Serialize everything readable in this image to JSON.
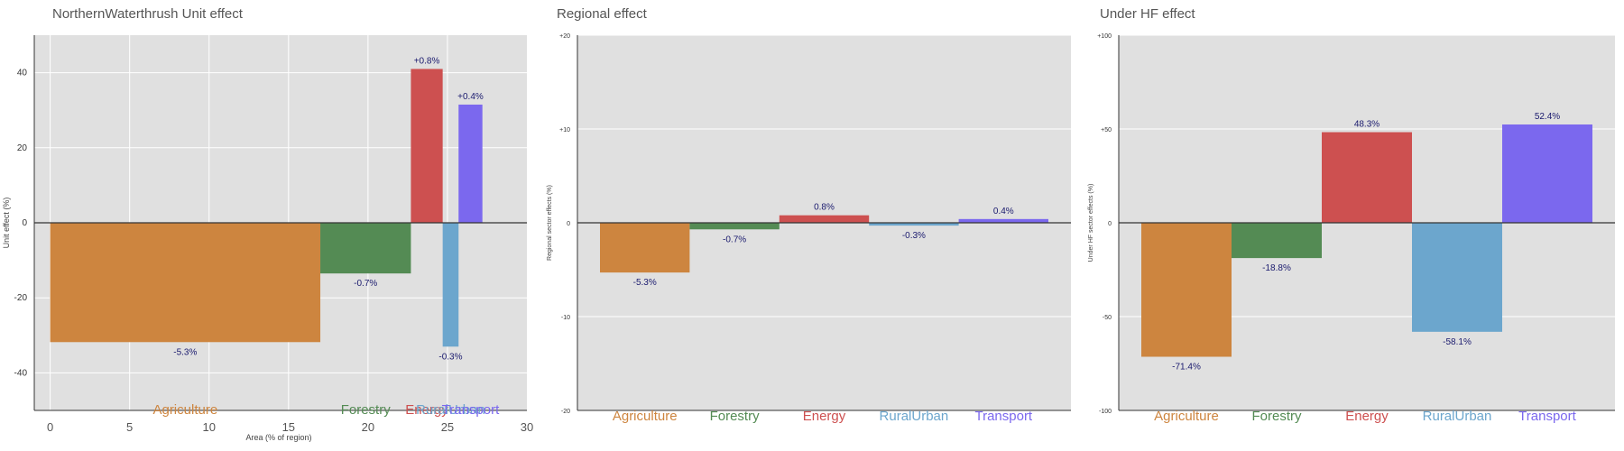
{
  "colors": {
    "panel_bg": "#e0e0e0",
    "grid": "#ffffff",
    "axis": "#333333",
    "label_text": "#1a1a6e",
    "Agriculture": "#cd853f",
    "Forestry": "#548b54",
    "Energy": "#cd5050",
    "RuralUrban": "#6ca6cd",
    "Transport": "#7b68ee"
  },
  "chart_data": [
    {
      "type": "bar",
      "title": "NorthernWaterthrush Unit effect",
      "xlabel": "Area (% of region)",
      "ylabel": "Unit effect (%)",
      "xlim": [
        -1,
        30
      ],
      "ylim": [
        -50,
        50
      ],
      "xticks": [
        0,
        5,
        10,
        15,
        20,
        25,
        30
      ],
      "yticks": [
        -40,
        -20,
        0,
        20,
        40
      ],
      "ytick_labels": [
        "-40",
        "-20",
        "0",
        "20",
        "40"
      ],
      "grid": true,
      "bars": [
        {
          "category": "Agriculture",
          "x0": 0,
          "x1": 17,
          "value": -31.8,
          "label": "-5.3%"
        },
        {
          "category": "Forestry",
          "x0": 17,
          "x1": 22.7,
          "value": -13.5,
          "label": "-0.7%"
        },
        {
          "category": "Energy",
          "x0": 22.7,
          "x1": 24.7,
          "value": 41,
          "label": "+0.8%"
        },
        {
          "category": "RuralUrban",
          "x0": 24.7,
          "x1": 25.7,
          "value": -33,
          "label": "-0.3%"
        },
        {
          "category": "Transport",
          "x0": 25.7,
          "x1": 27.2,
          "value": 31.5,
          "label": "+0.4%"
        }
      ],
      "categories": [
        "Agriculture",
        "Forestry",
        "Energy",
        "RuralUrban",
        "Transport"
      ]
    },
    {
      "type": "bar",
      "title": "Regional effect",
      "xlabel": "",
      "ylabel": "Regional sector effects (%)",
      "ylim": [
        -20,
        20
      ],
      "yticks": [
        -20,
        -10,
        0,
        10,
        20
      ],
      "ytick_labels": [
        "-20",
        "-10",
        "0",
        "+10",
        "+20"
      ],
      "grid": true,
      "categories": [
        "Agriculture",
        "Forestry",
        "Energy",
        "RuralUrban",
        "Transport"
      ],
      "values": [
        -5.3,
        -0.7,
        0.8,
        -0.3,
        0.4
      ],
      "labels": [
        "-5.3%",
        "-0.7%",
        "0.8%",
        "-0.3%",
        "0.4%"
      ]
    },
    {
      "type": "bar",
      "title": "Under HF effect",
      "xlabel": "",
      "ylabel": "Under HF sector effects (%)",
      "ylim": [
        -100,
        100
      ],
      "yticks": [
        -100,
        -50,
        0,
        50,
        100
      ],
      "ytick_labels": [
        "-100",
        "-50",
        "0",
        "+50",
        "+100"
      ],
      "grid": true,
      "categories": [
        "Agriculture",
        "Forestry",
        "Energy",
        "RuralUrban",
        "Transport"
      ],
      "values": [
        -71.4,
        -18.8,
        48.3,
        -58.1,
        52.4
      ],
      "labels": [
        "-71.4%",
        "-18.8%",
        "48.3%",
        "-58.1%",
        "52.4%"
      ]
    }
  ]
}
